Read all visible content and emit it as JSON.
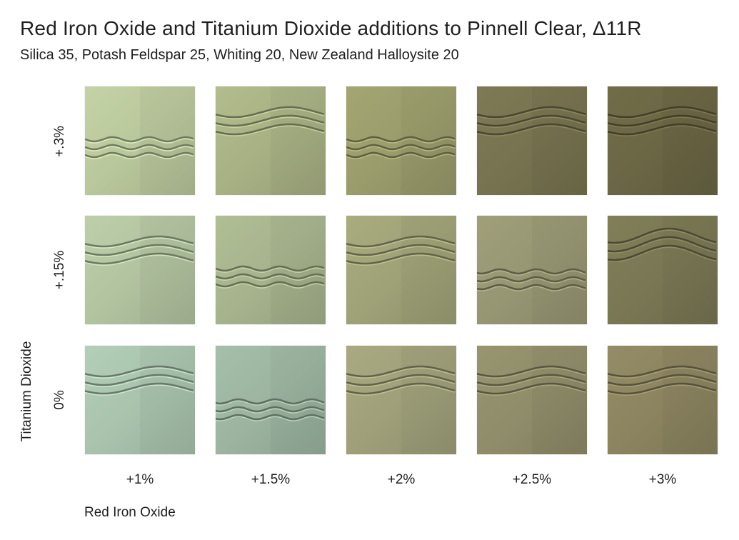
{
  "header": {
    "title": "Red Iron Oxide and Titanium Dioxide additions to Pinnell Clear, Δ11R",
    "subtitle": "Silica 35, Potash Feldspar 25, Whiting 20, New Zealand Halloysite 20"
  },
  "axes": {
    "y_label": "Titanium Dioxide",
    "x_label": "Red Iron Oxide"
  },
  "rows": [
    {
      "label": "+.3%"
    },
    {
      "label": "+.15%"
    },
    {
      "label": "0%"
    }
  ],
  "columns": [
    {
      "label": "+1%"
    },
    {
      "label": "+1.5%"
    },
    {
      "label": "+2%"
    },
    {
      "label": "+2.5%"
    },
    {
      "label": "+3%"
    }
  ],
  "tiles": [
    [
      {
        "color": "#b9c79c",
        "wave": "narrow-middle"
      },
      {
        "color": "#a8b184",
        "wave": "wide-top"
      },
      {
        "color": "#9a9c6c",
        "wave": "narrow-middle"
      },
      {
        "color": "#777350",
        "wave": "wide-top"
      },
      {
        "color": "#6b6644",
        "wave": "wide-top"
      }
    ],
    [
      {
        "color": "#b2c3a0",
        "wave": "wide-top"
      },
      {
        "color": "#a6b38d",
        "wave": "narrow-middle"
      },
      {
        "color": "#9fa277",
        "wave": "wide-top"
      },
      {
        "color": "#979673",
        "wave": "narrow-lower"
      },
      {
        "color": "#7a7754",
        "wave": "curved-top"
      }
    ],
    [
      {
        "color": "#a9c3ad",
        "wave": "wide-top"
      },
      {
        "color": "#9cb4a0",
        "wave": "narrow-lower"
      },
      {
        "color": "#9fa07a",
        "wave": "wide-top"
      },
      {
        "color": "#8f8d6a",
        "wave": "wide-top"
      },
      {
        "color": "#8c8460",
        "wave": "wide-top"
      }
    ]
  ]
}
